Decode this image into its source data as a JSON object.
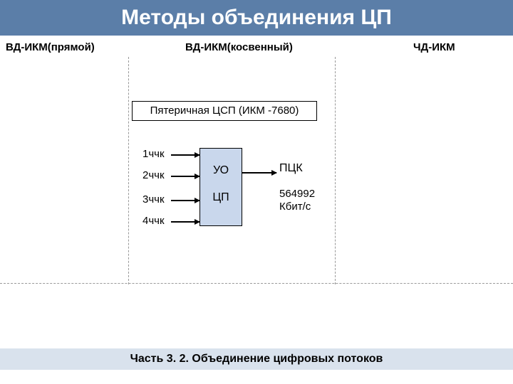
{
  "title": "Методы объединения ЦП",
  "headers": {
    "h1": "ВД-ИКМ(прямой)",
    "h2": "ВД-ИКМ(косвенный)",
    "h3": "ЧД-ИКМ"
  },
  "subtitle": "Пятеричная ЦСП (ИКМ -7680)",
  "inputs": {
    "i1": "1ччк",
    "i2": "2ччк",
    "i3": "3ччк",
    "i4": "4ччк"
  },
  "box": {
    "t1": "УО",
    "t2": "ЦП"
  },
  "output": {
    "label": "ПЦК",
    "rate": "564992",
    "unit": "Кбит/с"
  },
  "footer": "Часть 3. 2. Объединение цифровых потоков",
  "colors": {
    "titlebar": "#5b7ea8",
    "boxfill": "#c9d7ec",
    "footerbar": "#d9e2ed"
  }
}
